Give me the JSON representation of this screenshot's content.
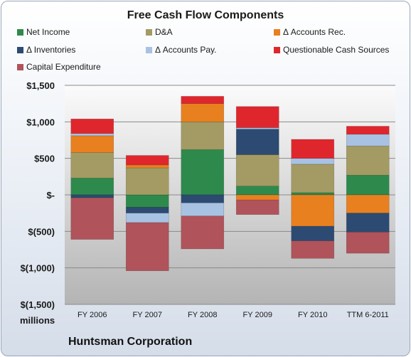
{
  "chart_data": {
    "type": "bar",
    "stacked": true,
    "title": "Free Cash Flow Components",
    "ylabel": "millions",
    "caption": "Huntsman Corporation",
    "categories": [
      "FY 2006",
      "FY 2007",
      "FY 2008",
      "FY 2009",
      "FY 2010",
      "TTM 6-2011"
    ],
    "yticks": [
      "$1,500",
      "$1,000",
      "$500",
      "$-",
      "$(500)",
      "$(1,000)",
      "$(1,500)"
    ],
    "ylim": [
      -1500,
      1500
    ],
    "grid": true,
    "legend_position": "top",
    "series": [
      {
        "name": "Net Income",
        "color": "#2d8a4c",
        "values": [
          230,
          -170,
          620,
          120,
          30,
          270
        ]
      },
      {
        "name": "D&A",
        "color": "#a39b63",
        "values": [
          350,
          370,
          380,
          430,
          390,
          400
        ]
      },
      {
        "name": "Δ Accounts Rec.",
        "color": "#e8801f",
        "values": [
          230,
          40,
          250,
          -70,
          -430,
          -250
        ]
      },
      {
        "name": "Δ Inventories",
        "color": "#2c4a72",
        "values": [
          -40,
          -80,
          -110,
          350,
          -200,
          -260
        ]
      },
      {
        "name": "Δ Accounts Pay.",
        "color": "#a8c2e3",
        "values": [
          30,
          -130,
          -180,
          20,
          80,
          160
        ]
      },
      {
        "name": "Questionable Cash Sources",
        "color": "#e0262d",
        "values": [
          200,
          130,
          100,
          290,
          260,
          110
        ]
      },
      {
        "name": "Capital Expenditure",
        "color": "#b0535a",
        "values": [
          -570,
          -660,
          -450,
          -200,
          -240,
          -290
        ]
      }
    ]
  }
}
